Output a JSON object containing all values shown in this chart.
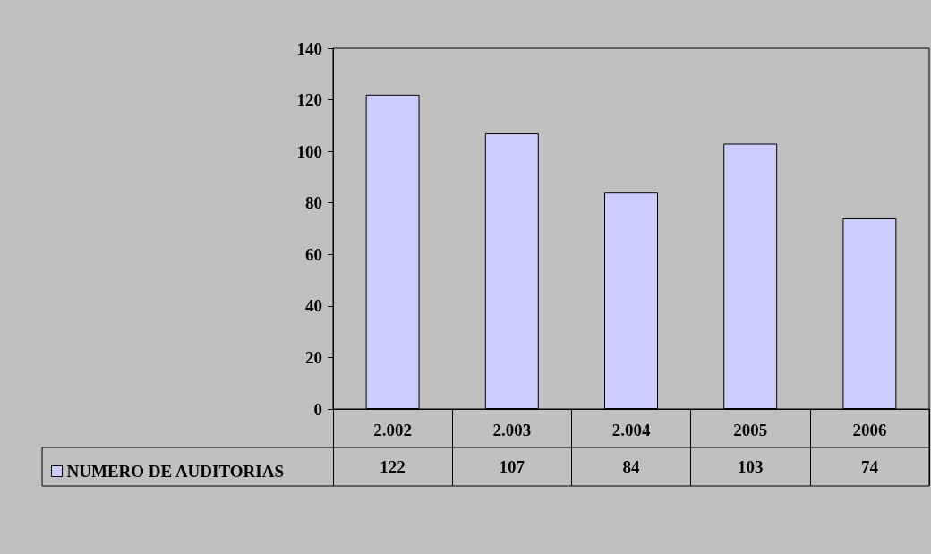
{
  "chart_data": {
    "type": "bar",
    "categories": [
      "2.002",
      "2.003",
      "2.004",
      "2005",
      "2006"
    ],
    "series": [
      {
        "name": "NUMERO DE AUDITORIAS",
        "color": "#ccccff",
        "values": [
          122,
          107,
          84,
          103,
          74
        ]
      }
    ],
    "ylim": [
      0,
      140
    ],
    "yticks": [
      0,
      20,
      40,
      60,
      80,
      100,
      120,
      140
    ],
    "grid": false,
    "legend": "bottom left",
    "data_labels": true
  }
}
